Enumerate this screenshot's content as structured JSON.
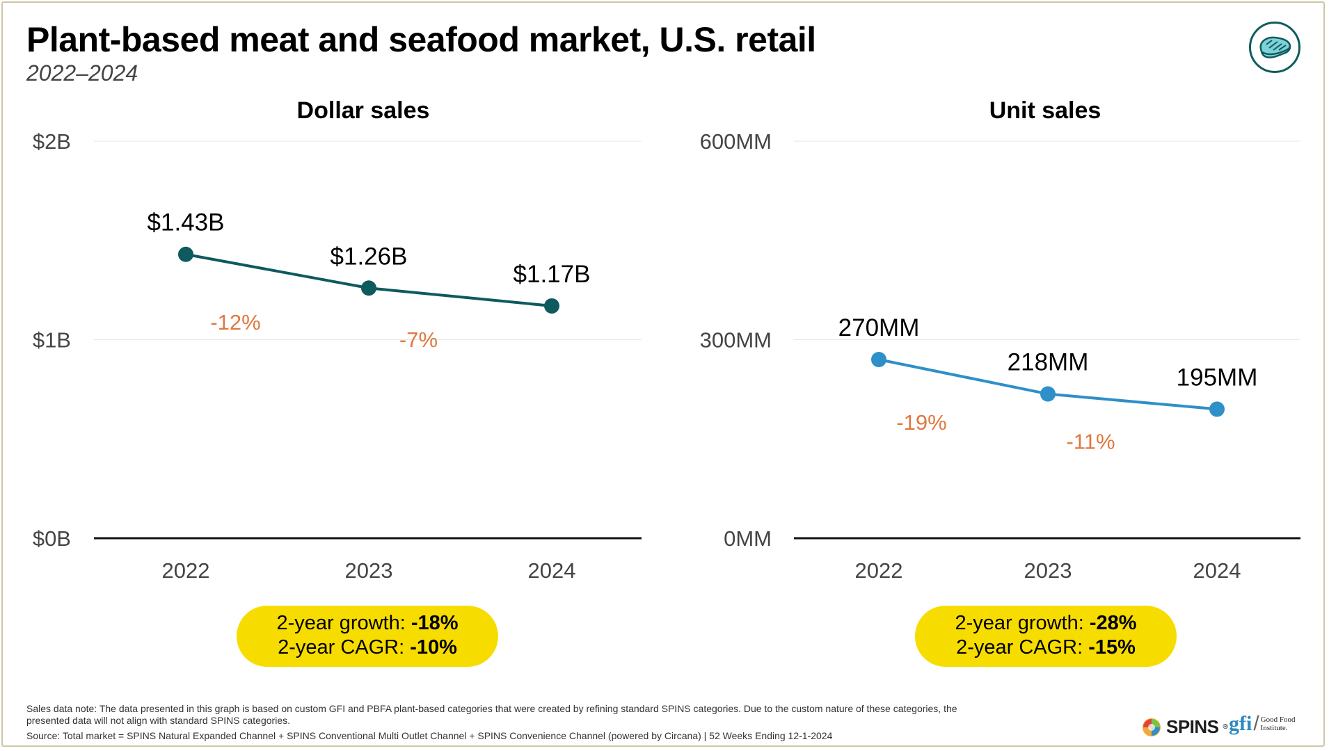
{
  "title": "Plant-based meat and seafood market, U.S. retail",
  "subtitle": "2022–2024",
  "logo_icon": "steak-icon",
  "chart_data": [
    {
      "type": "line",
      "title": "Dollar sales",
      "categories": [
        "2022",
        "2023",
        "2024"
      ],
      "values": [
        1.43,
        1.26,
        1.17
      ],
      "value_labels": [
        "$1.43B",
        "$1.26B",
        "$1.17B"
      ],
      "change_labels": [
        "-12%",
        "-7%"
      ],
      "y_ticks": [
        0,
        1,
        2
      ],
      "y_tick_labels": [
        "$0B",
        "$1B",
        "$2B"
      ],
      "ylim": [
        0,
        2
      ],
      "unit": "billions USD",
      "line_color": "#0e5a5e",
      "change_color": "#e07840",
      "grid": true,
      "summary": {
        "growth_label": "2-year growth: ",
        "growth_value": "-18%",
        "cagr_label": "2-year CAGR: ",
        "cagr_value": "-10%"
      }
    },
    {
      "type": "line",
      "title": "Unit sales",
      "categories": [
        "2022",
        "2023",
        "2024"
      ],
      "values": [
        270,
        218,
        195
      ],
      "value_labels": [
        "270MM",
        "218MM",
        "195MM"
      ],
      "change_labels": [
        "-19%",
        "-11%"
      ],
      "y_ticks": [
        0,
        300,
        600
      ],
      "y_tick_labels": [
        "0MM",
        "300MM",
        "600MM"
      ],
      "ylim": [
        0,
        600
      ],
      "unit": "millions of units",
      "line_color": "#2e8fc9",
      "change_color": "#e07840",
      "grid": true,
      "summary": {
        "growth_label": "2-year growth: ",
        "growth_value": "-28%",
        "cagr_label": "2-year CAGR: ",
        "cagr_value": "-15%"
      }
    }
  ],
  "footer": {
    "note": "Sales data note: The data presented in this graph is based on custom GFI and PBFA plant-based categories that were created by refining standard SPINS categories. Due to the custom nature of these categories, the presented data will not align with standard SPINS categories.",
    "source": "Source: Total market = SPINS Natural Expanded Channel + SPINS Conventional Multi Outlet Channel + SPINS Convenience Channel (powered by Circana) | 52 Weeks Ending 12-1-2024"
  },
  "brands": {
    "spins": "SPINS",
    "spins_mark": "®",
    "gfi": "gfi",
    "gfi_name": [
      "Good Food",
      "Institute."
    ]
  },
  "colors": {
    "accent_yellow": "#f7dc00",
    "brand_teal": "#0f5c5c"
  }
}
